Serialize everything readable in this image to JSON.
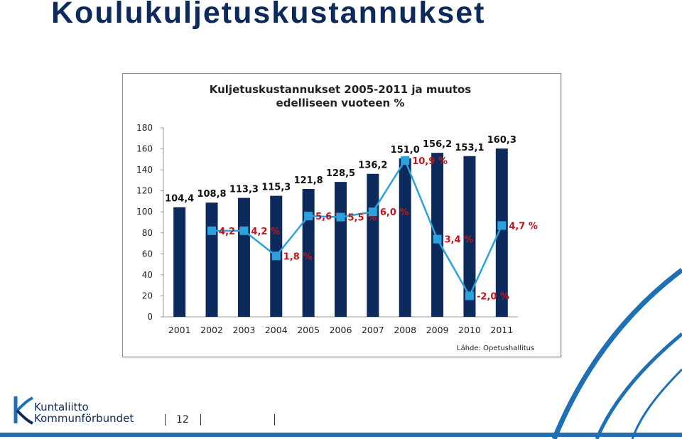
{
  "slide": {
    "title": "Koulukuljetuskustannukset",
    "page_number": "12"
  },
  "logo": {
    "line1": "Kuntaliitto",
    "line2": "Kommunförbundet"
  },
  "chart_data": {
    "type": "bar",
    "title_line1": "Kuljetuskustannukset 2005-2011 ja muutos",
    "title_line2": "edelliseen vuoteen %",
    "categories": [
      "2001",
      "2002",
      "2003",
      "2004",
      "2005",
      "2006",
      "2007",
      "2008",
      "2009",
      "2010",
      "2011"
    ],
    "ylim": [
      0,
      180
    ],
    "yticks": [
      0,
      20,
      40,
      60,
      80,
      100,
      120,
      140,
      160,
      180
    ],
    "grid": false,
    "series": [
      {
        "kind": "bar",
        "values": [
          104.4,
          108.8,
          113.3,
          115.3,
          121.8,
          128.5,
          136.2,
          151.0,
          156.2,
          153.1,
          160.3
        ],
        "labels": [
          "104,4",
          "108,8",
          "113,3",
          "115,3",
          "121,8",
          "128,5",
          "136,2",
          "151,0",
          "156,2",
          "153,1",
          "160,3"
        ],
        "color": "#0d2a5c"
      },
      {
        "kind": "line",
        "values": [
          null,
          4.2,
          4.2,
          1.8,
          5.6,
          5.5,
          6.0,
          10.9,
          3.4,
          -2.0,
          4.7
        ],
        "labels": [
          "",
          "4,2 %",
          "4,2 %",
          "1,8 %",
          "5,6 %",
          "5,5 %",
          "6,0 %",
          "10,9 %",
          "3,4 %",
          "-2,0 %",
          "4,7 %"
        ],
        "color": "#2aa3dc",
        "label_color": "#c0161d"
      }
    ],
    "source_note": "Lähde: Opetushallitus"
  }
}
